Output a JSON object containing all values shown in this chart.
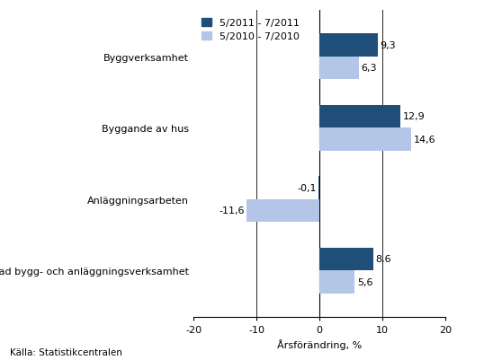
{
  "categories": [
    "Byggverksamhet",
    "Byggande av hus",
    "Anläggningsarbeten",
    "Specialiserad bygg- och anläggningsverksamhet"
  ],
  "series_2011": [
    9.3,
    12.9,
    -0.1,
    8.6
  ],
  "series_2010": [
    6.3,
    14.6,
    -11.6,
    5.6
  ],
  "color_2011": "#1f4e79",
  "color_2010": "#b4c6e7",
  "legend_2011": "5/2011 - 7/2011",
  "legend_2010": "5/2010 - 7/2010",
  "xlabel": "Årsförändring, %",
  "xlim": [
    -20,
    20
  ],
  "xticks": [
    -20,
    -10,
    0,
    10,
    20
  ],
  "footnote": "Källa: Statistikcentralen",
  "bar_height": 0.32,
  "background_color": "#ffffff"
}
